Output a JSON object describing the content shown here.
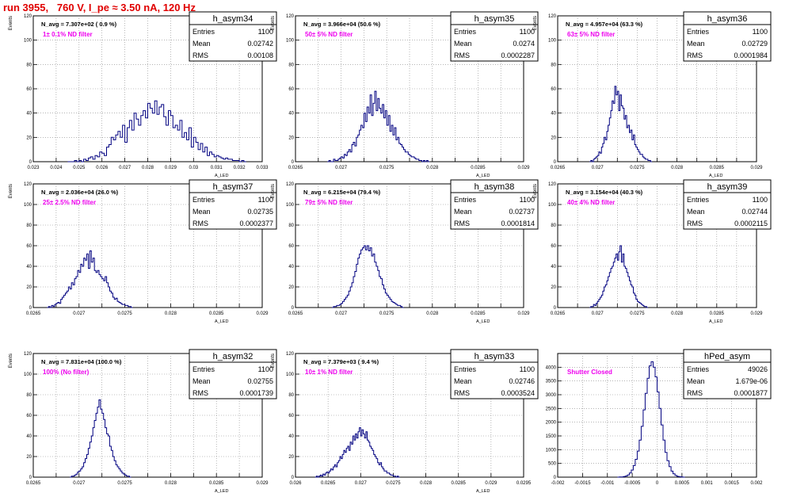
{
  "header": {
    "title": "run 3955,   760 V, I_pe ≈ 3.50 nA, 120 Hz"
  },
  "colors": {
    "title": "#e00000",
    "hist": "#000080",
    "filter_label": "#ee00ee",
    "grid": "#888888"
  },
  "chart_data": [
    {
      "type": "histogram",
      "name": "h_asym34",
      "navg": "N_avg = 7.307e+02 ( 0.9 %)",
      "filter_label": "1± 0.1% ND filter",
      "stats": {
        "entries": "1100",
        "mean": "0.02742",
        "rms": "0.00108"
      },
      "ylabel": "Events",
      "xlabel": "A_LED",
      "xlim": [
        0.023,
        0.033
      ],
      "ylim": [
        0,
        120
      ],
      "xticks": [
        "0.023",
        "0.024",
        "0.025",
        "0.026",
        "0.027",
        "0.028",
        "0.029",
        "0.03",
        "0.031",
        "0.032",
        "0.033"
      ],
      "yticks": [
        "0",
        "20",
        "40",
        "60",
        "80",
        "100",
        "120"
      ],
      "xstart": 0.0245,
      "binw": 0.0001,
      "values": [
        0,
        0,
        0,
        1,
        0,
        1,
        0,
        2,
        1,
        3,
        4,
        2,
        5,
        4,
        8,
        7,
        5,
        12,
        14,
        20,
        18,
        22,
        25,
        20,
        30,
        16,
        28,
        34,
        26,
        40,
        35,
        30,
        38,
        42,
        36,
        48,
        44,
        40,
        50,
        39,
        45,
        47,
        37,
        30,
        42,
        38,
        28,
        30,
        26,
        34,
        20,
        24,
        18,
        28,
        12,
        20,
        16,
        10,
        15,
        8,
        12,
        5,
        8,
        6,
        4,
        5,
        4,
        3,
        2,
        3,
        2,
        2,
        1,
        1,
        1,
        0,
        1,
        0
      ]
    },
    {
      "type": "histogram",
      "name": "h_asym35",
      "navg": "N_avg = 3.966e+04 (50.6 %)",
      "filter_label": "50± 5% ND filter",
      "stats": {
        "entries": "1100",
        "mean": "0.0274",
        "rms": "0.0002287"
      },
      "ylabel": "Events",
      "xlabel": "A_LED",
      "xlim": [
        0.0265,
        0.029
      ],
      "ylim": [
        0,
        120
      ],
      "xticks": [
        "0.0265",
        "",
        "0.027",
        "",
        "0.0275",
        "",
        "0.028",
        "",
        "0.0285",
        "",
        "0.029"
      ],
      "yticks": [
        "0",
        "20",
        "40",
        "60",
        "80",
        "100",
        "120"
      ],
      "xstart": 0.02685,
      "binw": 1.67e-05,
      "values": [
        0,
        1,
        0,
        0,
        2,
        1,
        1,
        2,
        3,
        4,
        3,
        6,
        5,
        8,
        10,
        8,
        14,
        16,
        13,
        20,
        22,
        26,
        30,
        28,
        40,
        33,
        45,
        40,
        55,
        38,
        48,
        58,
        42,
        52,
        44,
        40,
        47,
        36,
        42,
        30,
        38,
        25,
        30,
        22,
        28,
        18,
        20,
        15,
        14,
        12,
        10,
        8,
        8,
        6,
        5,
        4,
        4,
        3,
        2,
        2,
        1,
        1,
        0,
        1,
        0,
        1,
        0
      ]
    },
    {
      "type": "histogram",
      "name": "h_asym36",
      "navg": "N_avg = 4.957e+04 (63.3 %)",
      "filter_label": "63± 5% ND filter",
      "stats": {
        "entries": "1100",
        "mean": "0.02729",
        "rms": "0.0001984"
      },
      "ylabel": "Events",
      "xlabel": "A_LED",
      "xlim": [
        0.0265,
        0.029
      ],
      "ylim": [
        0,
        120
      ],
      "xticks": [
        "0.0265",
        "",
        "0.027",
        "",
        "0.0275",
        "",
        "0.028",
        "",
        "0.0285",
        "",
        "0.029"
      ],
      "yticks": [
        "0",
        "20",
        "40",
        "60",
        "80",
        "100",
        "120"
      ],
      "xstart": 0.0269,
      "binw": 1.67e-05,
      "values": [
        0,
        1,
        0,
        2,
        3,
        4,
        5,
        8,
        7,
        12,
        15,
        20,
        18,
        25,
        30,
        36,
        42,
        50,
        48,
        62,
        55,
        58,
        42,
        55,
        46,
        44,
        35,
        38,
        28,
        30,
        24,
        26,
        18,
        22,
        14,
        12,
        10,
        8,
        6,
        6,
        4,
        3,
        2,
        2,
        1,
        1,
        0
      ]
    },
    {
      "type": "histogram",
      "name": "h_asym37",
      "navg": "N_avg = 2.036e+04 (26.0 %)",
      "filter_label": "25± 2.5% ND filter",
      "stats": {
        "entries": "1100",
        "mean": "0.02735",
        "rms": "0.0002377"
      },
      "ylabel": "Events",
      "xlabel": "A_LED",
      "xlim": [
        0.0265,
        0.029
      ],
      "ylim": [
        0,
        120
      ],
      "xticks": [
        "0.0265",
        "",
        "0.027",
        "",
        "0.0275",
        "",
        "0.028",
        "",
        "0.0285",
        "",
        "0.029"
      ],
      "yticks": [
        "0",
        "20",
        "40",
        "60",
        "80",
        "100",
        "120"
      ],
      "xstart": 0.02665,
      "binw": 1.67e-05,
      "values": [
        0,
        1,
        0,
        2,
        1,
        3,
        4,
        5,
        4,
        8,
        10,
        12,
        14,
        16,
        20,
        18,
        24,
        22,
        28,
        30,
        36,
        34,
        42,
        40,
        48,
        46,
        52,
        38,
        55,
        44,
        48,
        36,
        34,
        36,
        32,
        30,
        28,
        26,
        30,
        24,
        20,
        16,
        14,
        10,
        8,
        9,
        6,
        5,
        4,
        3,
        3,
        2,
        2,
        1,
        1,
        0
      ]
    },
    {
      "type": "histogram",
      "name": "h_asym38",
      "navg": "N_avg = 6.215e+04 (79.4 %)",
      "filter_label": "79± 5% ND filter",
      "stats": {
        "entries": "1100",
        "mean": "0.02737",
        "rms": "0.0001814"
      },
      "ylabel": "Events",
      "xlabel": "A_LED",
      "xlim": [
        0.0265,
        0.029
      ],
      "ylim": [
        0,
        120
      ],
      "xticks": [
        "0.0265",
        "",
        "0.027",
        "",
        "0.0275",
        "",
        "0.028",
        "",
        "0.0285",
        "",
        "0.029"
      ],
      "yticks": [
        "0",
        "20",
        "40",
        "60",
        "80",
        "100",
        "120"
      ],
      "xstart": 0.0269,
      "binw": 1.67e-05,
      "values": [
        0,
        1,
        1,
        2,
        2,
        3,
        4,
        6,
        8,
        10,
        12,
        16,
        20,
        24,
        30,
        35,
        42,
        48,
        52,
        56,
        58,
        60,
        56,
        60,
        55,
        58,
        50,
        52,
        44,
        40,
        36,
        30,
        28,
        22,
        18,
        14,
        12,
        10,
        8,
        6,
        5,
        4,
        3,
        2,
        2,
        1,
        0
      ]
    },
    {
      "type": "histogram",
      "name": "h_asym39",
      "navg": "N_avg = 3.154e+04 (40.3 %)",
      "filter_label": "40± 4% ND filter",
      "stats": {
        "entries": "1100",
        "mean": "0.02744",
        "rms": "0.0002115"
      },
      "ylabel": "Events",
      "xlabel": "A_LED",
      "xlim": [
        0.0265,
        0.029
      ],
      "ylim": [
        0,
        120
      ],
      "xticks": [
        "0.0265",
        "",
        "0.027",
        "",
        "0.0275",
        "",
        "0.028",
        "",
        "0.0285",
        "",
        "0.029"
      ],
      "yticks": [
        "0",
        "20",
        "40",
        "60",
        "80",
        "100",
        "120"
      ],
      "xstart": 0.0269,
      "binw": 1.67e-05,
      "values": [
        0,
        1,
        1,
        3,
        2,
        4,
        6,
        8,
        10,
        12,
        16,
        20,
        22,
        26,
        30,
        34,
        38,
        40,
        44,
        48,
        52,
        46,
        54,
        60,
        44,
        52,
        40,
        38,
        34,
        30,
        26,
        22,
        20,
        14,
        12,
        8,
        6,
        5,
        4,
        3,
        2,
        1,
        1,
        0
      ]
    },
    {
      "type": "histogram",
      "name": "h_asym32",
      "navg": "N_avg = 7.831e+04 (100.0 %)",
      "filter_label": "100% (No filter)",
      "stats": {
        "entries": "1100",
        "mean": "0.02755",
        "rms": "0.0001739"
      },
      "ylabel": "Events",
      "xlabel": "A_LED",
      "xlim": [
        0.0265,
        0.029
      ],
      "ylim": [
        0,
        120
      ],
      "xticks": [
        "0.0265",
        "",
        "0.027",
        "",
        "0.0275",
        "",
        "0.028",
        "",
        "0.0285",
        "",
        "0.029"
      ],
      "yticks": [
        "0",
        "20",
        "40",
        "60",
        "80",
        "100",
        "120"
      ],
      "xstart": 0.0269,
      "binw": 1.67e-05,
      "values": [
        0,
        1,
        1,
        2,
        3,
        5,
        6,
        8,
        10,
        14,
        18,
        22,
        28,
        34,
        40,
        48,
        55,
        62,
        68,
        75,
        66,
        62,
        56,
        48,
        42,
        40,
        30,
        26,
        20,
        16,
        12,
        10,
        8,
        6,
        4,
        3,
        2,
        1,
        1,
        0
      ]
    },
    {
      "type": "histogram",
      "name": "h_asym33",
      "navg": "N_avg = 7.379e+03 ( 9.4 %)",
      "filter_label": "10± 1% ND filter",
      "stats": {
        "entries": "1100",
        "mean": "0.02746",
        "rms": "0.0003524"
      },
      "ylabel": "Events",
      "xlabel": "A_LED",
      "xlim": [
        0.026,
        0.0295
      ],
      "ylim": [
        0,
        120
      ],
      "xticks": [
        "0.026",
        "0.0265",
        "0.027",
        "0.0275",
        "0.028",
        "0.0285",
        "0.029",
        "0.0295"
      ],
      "yticks": [
        "0",
        "20",
        "40",
        "60",
        "80",
        "100",
        "120"
      ],
      "xstart": 0.0263,
      "binw": 2e-05,
      "values": [
        0,
        1,
        0,
        1,
        2,
        1,
        3,
        2,
        4,
        5,
        4,
        6,
        8,
        7,
        10,
        12,
        10,
        14,
        16,
        20,
        18,
        22,
        26,
        24,
        28,
        30,
        26,
        34,
        32,
        40,
        36,
        42,
        38,
        44,
        48,
        40,
        46,
        42,
        38,
        44,
        36,
        34,
        30,
        28,
        26,
        22,
        20,
        18,
        14,
        12,
        14,
        10,
        8,
        6,
        6,
        4,
        4,
        3,
        2,
        2,
        1,
        1,
        0,
        1,
        0
      ]
    },
    {
      "type": "histogram",
      "name": "hPed_asym",
      "navg": "",
      "filter_label": "Shutter Closed",
      "stats": {
        "entries": "49026",
        "mean": "1.679e-06",
        "rms": "0.0001877"
      },
      "ylabel": "",
      "xlabel": "",
      "xlim": [
        -0.002,
        0.002
      ],
      "ylim": [
        0,
        4500
      ],
      "xticks": [
        "-0.002",
        "-0.0015",
        "-0.001",
        "-0.0005",
        "0",
        "0.0005",
        "0.001",
        "0.0015",
        "0.002"
      ],
      "yticks": [
        "0",
        "500",
        "1000",
        "1500",
        "2000",
        "2500",
        "3000",
        "3500",
        "4000"
      ],
      "xstart": -0.0008,
      "binw": 4e-05,
      "values": [
        0,
        5,
        10,
        20,
        40,
        80,
        150,
        260,
        420,
        650,
        950,
        1350,
        1850,
        2450,
        3050,
        3600,
        4050,
        4200,
        4000,
        3650,
        3100,
        2500,
        1900,
        1350,
        900,
        600,
        380,
        220,
        120,
        60,
        30,
        15,
        5,
        0
      ]
    }
  ]
}
